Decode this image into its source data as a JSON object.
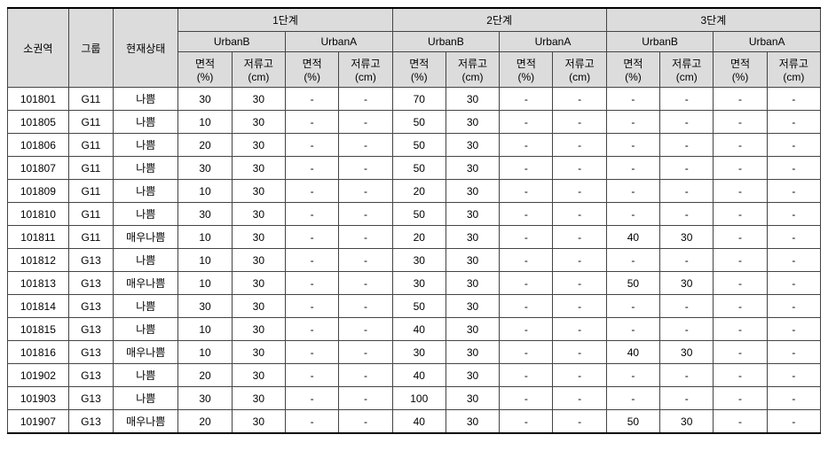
{
  "colors": {
    "header_bg": "#dcdcdc",
    "border": "#444444",
    "outer_border": "#000000",
    "text": "#000000",
    "background": "#ffffff"
  },
  "typography": {
    "font_family": "Malgun Gothic",
    "font_size_pt": 9
  },
  "table": {
    "type": "table",
    "header": {
      "zone": "소권역",
      "group": "그룹",
      "status": "현재상태",
      "stages": [
        "1단계",
        "2단계",
        "3단계"
      ],
      "subgroups": [
        "UrbanB",
        "UrbanA"
      ],
      "metrics": {
        "area": "면적\n(%)",
        "depth": "저류고\n(cm)"
      }
    },
    "rows": [
      {
        "zone": "101801",
        "group": "G11",
        "status": "나쁨",
        "s1": {
          "ub": {
            "a": "30",
            "d": "30"
          },
          "ua": {
            "a": "-",
            "d": "-"
          }
        },
        "s2": {
          "ub": {
            "a": "70",
            "d": "30"
          },
          "ua": {
            "a": "-",
            "d": "-"
          }
        },
        "s3": {
          "ub": {
            "a": "-",
            "d": "-"
          },
          "ua": {
            "a": "-",
            "d": "-"
          }
        }
      },
      {
        "zone": "101805",
        "group": "G11",
        "status": "나쁨",
        "s1": {
          "ub": {
            "a": "10",
            "d": "30"
          },
          "ua": {
            "a": "-",
            "d": "-"
          }
        },
        "s2": {
          "ub": {
            "a": "50",
            "d": "30"
          },
          "ua": {
            "a": "-",
            "d": "-"
          }
        },
        "s3": {
          "ub": {
            "a": "-",
            "d": "-"
          },
          "ua": {
            "a": "-",
            "d": "-"
          }
        }
      },
      {
        "zone": "101806",
        "group": "G11",
        "status": "나쁨",
        "s1": {
          "ub": {
            "a": "20",
            "d": "30"
          },
          "ua": {
            "a": "-",
            "d": "-"
          }
        },
        "s2": {
          "ub": {
            "a": "50",
            "d": "30"
          },
          "ua": {
            "a": "-",
            "d": "-"
          }
        },
        "s3": {
          "ub": {
            "a": "-",
            "d": "-"
          },
          "ua": {
            "a": "-",
            "d": "-"
          }
        }
      },
      {
        "zone": "101807",
        "group": "G11",
        "status": "나쁨",
        "s1": {
          "ub": {
            "a": "30",
            "d": "30"
          },
          "ua": {
            "a": "-",
            "d": "-"
          }
        },
        "s2": {
          "ub": {
            "a": "50",
            "d": "30"
          },
          "ua": {
            "a": "-",
            "d": "-"
          }
        },
        "s3": {
          "ub": {
            "a": "-",
            "d": "-"
          },
          "ua": {
            "a": "-",
            "d": "-"
          }
        }
      },
      {
        "zone": "101809",
        "group": "G11",
        "status": "나쁨",
        "s1": {
          "ub": {
            "a": "10",
            "d": "30"
          },
          "ua": {
            "a": "-",
            "d": "-"
          }
        },
        "s2": {
          "ub": {
            "a": "20",
            "d": "30"
          },
          "ua": {
            "a": "-",
            "d": "-"
          }
        },
        "s3": {
          "ub": {
            "a": "-",
            "d": "-"
          },
          "ua": {
            "a": "-",
            "d": "-"
          }
        }
      },
      {
        "zone": "101810",
        "group": "G11",
        "status": "나쁨",
        "s1": {
          "ub": {
            "a": "30",
            "d": "30"
          },
          "ua": {
            "a": "-",
            "d": "-"
          }
        },
        "s2": {
          "ub": {
            "a": "50",
            "d": "30"
          },
          "ua": {
            "a": "-",
            "d": "-"
          }
        },
        "s3": {
          "ub": {
            "a": "-",
            "d": "-"
          },
          "ua": {
            "a": "-",
            "d": "-"
          }
        }
      },
      {
        "zone": "101811",
        "group": "G11",
        "status": "매우나쁨",
        "s1": {
          "ub": {
            "a": "10",
            "d": "30"
          },
          "ua": {
            "a": "-",
            "d": "-"
          }
        },
        "s2": {
          "ub": {
            "a": "20",
            "d": "30"
          },
          "ua": {
            "a": "-",
            "d": "-"
          }
        },
        "s3": {
          "ub": {
            "a": "40",
            "d": "30"
          },
          "ua": {
            "a": "-",
            "d": "-"
          }
        }
      },
      {
        "zone": "101812",
        "group": "G13",
        "status": "나쁨",
        "s1": {
          "ub": {
            "a": "10",
            "d": "30"
          },
          "ua": {
            "a": "-",
            "d": "-"
          }
        },
        "s2": {
          "ub": {
            "a": "30",
            "d": "30"
          },
          "ua": {
            "a": "-",
            "d": "-"
          }
        },
        "s3": {
          "ub": {
            "a": "-",
            "d": "-"
          },
          "ua": {
            "a": "-",
            "d": "-"
          }
        }
      },
      {
        "zone": "101813",
        "group": "G13",
        "status": "매우나쁨",
        "s1": {
          "ub": {
            "a": "10",
            "d": "30"
          },
          "ua": {
            "a": "-",
            "d": "-"
          }
        },
        "s2": {
          "ub": {
            "a": "30",
            "d": "30"
          },
          "ua": {
            "a": "-",
            "d": "-"
          }
        },
        "s3": {
          "ub": {
            "a": "50",
            "d": "30"
          },
          "ua": {
            "a": "-",
            "d": "-"
          }
        }
      },
      {
        "zone": "101814",
        "group": "G13",
        "status": "나쁨",
        "s1": {
          "ub": {
            "a": "30",
            "d": "30"
          },
          "ua": {
            "a": "-",
            "d": "-"
          }
        },
        "s2": {
          "ub": {
            "a": "50",
            "d": "30"
          },
          "ua": {
            "a": "-",
            "d": "-"
          }
        },
        "s3": {
          "ub": {
            "a": "-",
            "d": "-"
          },
          "ua": {
            "a": "-",
            "d": "-"
          }
        }
      },
      {
        "zone": "101815",
        "group": "G13",
        "status": "나쁨",
        "s1": {
          "ub": {
            "a": "10",
            "d": "30"
          },
          "ua": {
            "a": "-",
            "d": "-"
          }
        },
        "s2": {
          "ub": {
            "a": "40",
            "d": "30"
          },
          "ua": {
            "a": "-",
            "d": "-"
          }
        },
        "s3": {
          "ub": {
            "a": "-",
            "d": "-"
          },
          "ua": {
            "a": "-",
            "d": "-"
          }
        }
      },
      {
        "zone": "101816",
        "group": "G13",
        "status": "매우나쁨",
        "s1": {
          "ub": {
            "a": "10",
            "d": "30"
          },
          "ua": {
            "a": "-",
            "d": "-"
          }
        },
        "s2": {
          "ub": {
            "a": "30",
            "d": "30"
          },
          "ua": {
            "a": "-",
            "d": "-"
          }
        },
        "s3": {
          "ub": {
            "a": "40",
            "d": "30"
          },
          "ua": {
            "a": "-",
            "d": "-"
          }
        }
      },
      {
        "zone": "101902",
        "group": "G13",
        "status": "나쁨",
        "s1": {
          "ub": {
            "a": "20",
            "d": "30"
          },
          "ua": {
            "a": "-",
            "d": "-"
          }
        },
        "s2": {
          "ub": {
            "a": "40",
            "d": "30"
          },
          "ua": {
            "a": "-",
            "d": "-"
          }
        },
        "s3": {
          "ub": {
            "a": "-",
            "d": "-"
          },
          "ua": {
            "a": "-",
            "d": "-"
          }
        }
      },
      {
        "zone": "101903",
        "group": "G13",
        "status": "나쁨",
        "s1": {
          "ub": {
            "a": "30",
            "d": "30"
          },
          "ua": {
            "a": "-",
            "d": "-"
          }
        },
        "s2": {
          "ub": {
            "a": "100",
            "d": "30"
          },
          "ua": {
            "a": "-",
            "d": "-"
          }
        },
        "s3": {
          "ub": {
            "a": "-",
            "d": "-"
          },
          "ua": {
            "a": "-",
            "d": "-"
          }
        }
      },
      {
        "zone": "101907",
        "group": "G13",
        "status": "매우나쁨",
        "s1": {
          "ub": {
            "a": "20",
            "d": "30"
          },
          "ua": {
            "a": "-",
            "d": "-"
          }
        },
        "s2": {
          "ub": {
            "a": "40",
            "d": "30"
          },
          "ua": {
            "a": "-",
            "d": "-"
          }
        },
        "s3": {
          "ub": {
            "a": "50",
            "d": "30"
          },
          "ua": {
            "a": "-",
            "d": "-"
          }
        }
      }
    ]
  }
}
